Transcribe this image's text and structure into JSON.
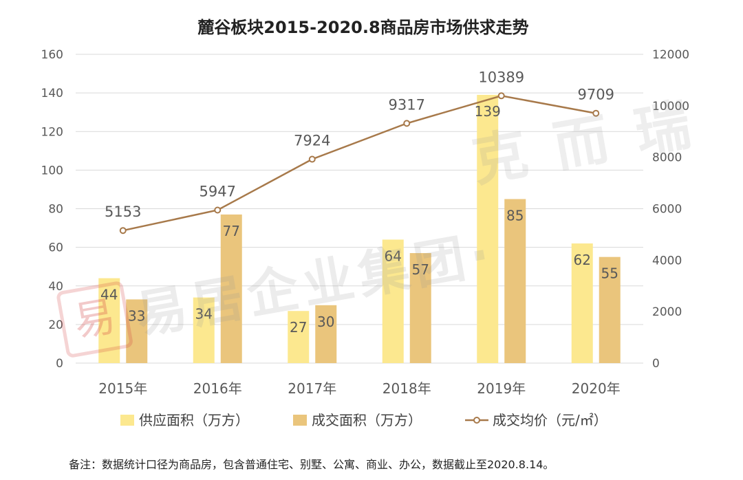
{
  "chart_data": {
    "type": "bar+line",
    "title": "麓谷板块2015-2020.8商品房市场供求走势",
    "categories": [
      "2015年",
      "2016年",
      "2017年",
      "2018年",
      "2019年",
      "2020年"
    ],
    "series": [
      {
        "name": "供应面积（万方）",
        "type": "bar",
        "axis": "left",
        "color": "#FCE88F",
        "values": [
          44,
          34,
          27,
          64,
          139,
          62
        ]
      },
      {
        "name": "成交面积（万方）",
        "type": "bar",
        "axis": "left",
        "color": "#EAC57C",
        "values": [
          33,
          77,
          30,
          57,
          85,
          55
        ]
      },
      {
        "name": "成交均价（元/㎡）",
        "type": "line",
        "axis": "right",
        "color": "#A7794A",
        "values": [
          5153,
          5947,
          7924,
          9317,
          10389,
          9709
        ]
      }
    ],
    "y_left": {
      "min": 0,
      "max": 160,
      "ticks": [
        "0",
        "20",
        "40",
        "60",
        "80",
        "100",
        "120",
        "140",
        "160"
      ]
    },
    "y_right": {
      "min": 0,
      "max": 12000,
      "ticks": [
        "0",
        "2000",
        "4000",
        "6000",
        "8000",
        "10000",
        "12000"
      ]
    },
    "grid": true,
    "legend_position": "bottom"
  },
  "watermark": {
    "seal": "易",
    "text": "易居企业集团",
    "dot": "·",
    "brand": "克而瑞"
  },
  "footnote": "备注：数据统计口径为商品房，包含普通住宅、别墅、公寓、商业、办公，数据截止至2020.8.14。"
}
